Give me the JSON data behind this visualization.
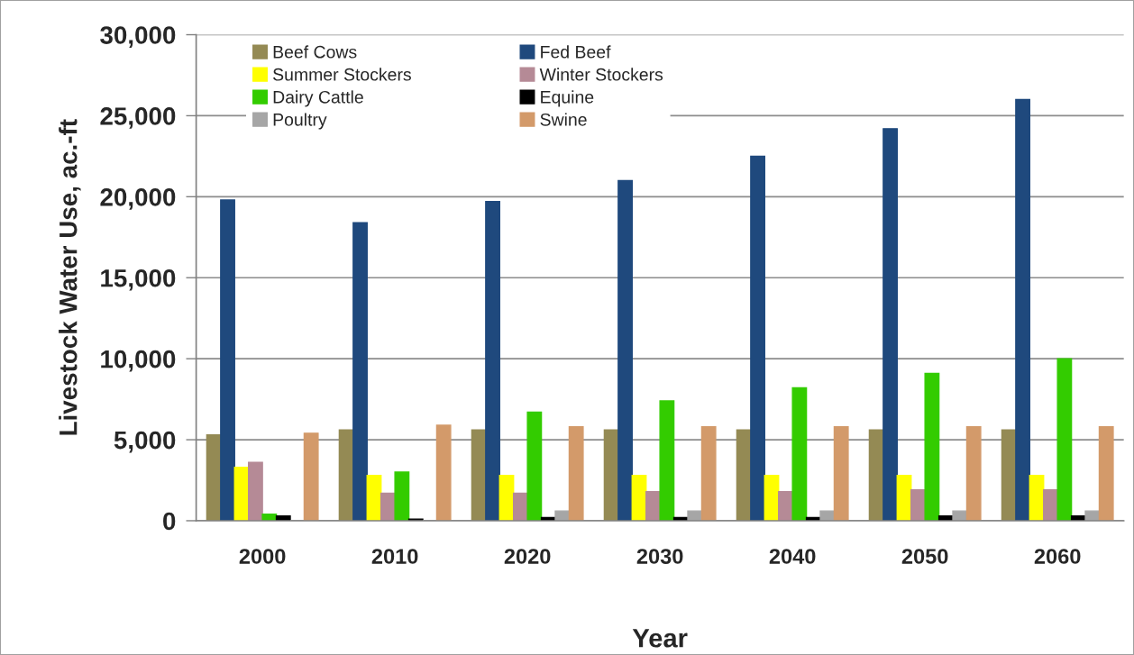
{
  "chart_data": {
    "type": "bar",
    "xlabel": "Year",
    "ylabel": "Livestock Water Use, ac.-ft",
    "categories": [
      "2000",
      "2010",
      "2020",
      "2030",
      "2040",
      "2050",
      "2060"
    ],
    "series": [
      {
        "name": "Beef Cows",
        "color": "#948a54",
        "values": [
          5300,
          5600,
          5600,
          5600,
          5600,
          5600,
          5600
        ]
      },
      {
        "name": "Fed Beef",
        "color": "#1f497d",
        "values": [
          19800,
          18400,
          19700,
          21000,
          22500,
          24200,
          26000
        ]
      },
      {
        "name": "Summer Stockers",
        "color": "#ffff00",
        "values": [
          3300,
          2800,
          2800,
          2800,
          2800,
          2800,
          2800
        ]
      },
      {
        "name": "Winter Stockers",
        "color": "#b58a96",
        "values": [
          3600,
          1700,
          1700,
          1800,
          1800,
          1900,
          1900
        ]
      },
      {
        "name": "Dairy Cattle",
        "color": "#33cc00",
        "values": [
          400,
          3000,
          6700,
          7400,
          8200,
          9100,
          10000
        ]
      },
      {
        "name": "Equine",
        "color": "#000000",
        "values": [
          300,
          100,
          200,
          200,
          200,
          300,
          300
        ]
      },
      {
        "name": "Poultry",
        "color": "#a6a6a6",
        "values": [
          0,
          0,
          600,
          600,
          600,
          600,
          600
        ]
      },
      {
        "name": "Swine",
        "color": "#d39a6a",
        "values": [
          5400,
          5900,
          5800,
          5800,
          5800,
          5800,
          5800
        ]
      }
    ],
    "ylim": [
      0,
      30000
    ],
    "yticks": [
      {
        "value": 0,
        "label": "0"
      },
      {
        "value": 5000,
        "label": "5,000"
      },
      {
        "value": 10000,
        "label": "10,000"
      },
      {
        "value": 15000,
        "label": "15,000"
      },
      {
        "value": 20000,
        "label": "20,000"
      },
      {
        "value": 25000,
        "label": "25,000"
      },
      {
        "value": 30000,
        "label": "30,000"
      }
    ],
    "grid": "y",
    "legend": "top left"
  }
}
